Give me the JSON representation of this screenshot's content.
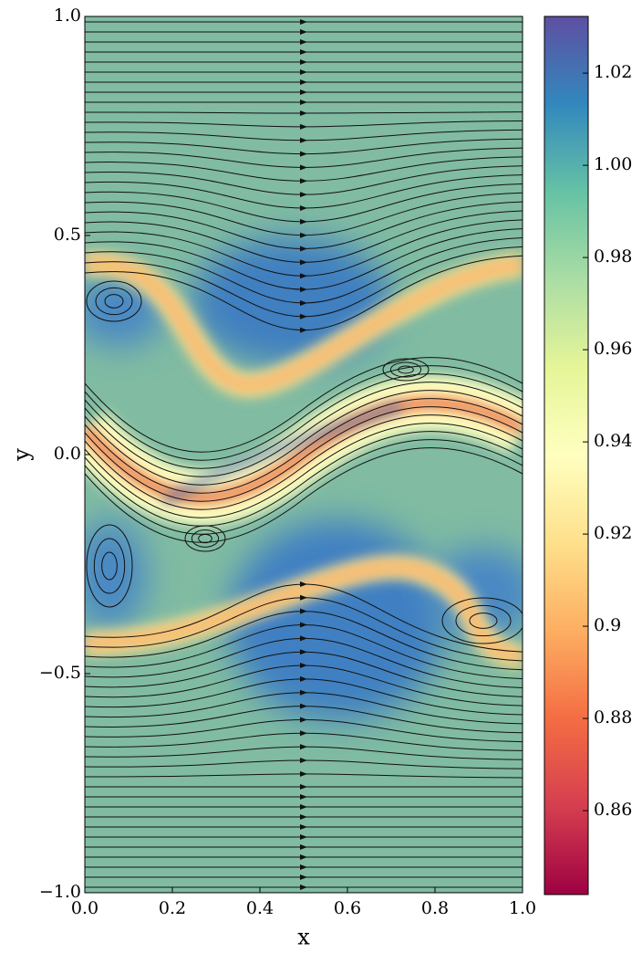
{
  "chart_data": {
    "type": "heatmap",
    "xlabel": "x",
    "ylabel": "y",
    "xlim": [
      0,
      1
    ],
    "ylim": [
      -1,
      1
    ],
    "xticks": [
      {
        "value": 0,
        "label": "0.0"
      },
      0.2,
      0.4,
      0.6,
      0.8,
      {
        "value": 1,
        "label": "1.0"
      }
    ],
    "yticks": [
      {
        "value": -1,
        "label": "−1.0"
      },
      {
        "value": -0.5,
        "label": "−0.5"
      },
      {
        "value": 0,
        "label": "0.0"
      },
      0.5,
      {
        "value": 1,
        "label": "1.0"
      }
    ],
    "colorbar_lim": [
      0.8418,
      1.0323
    ],
    "colorbar_ticks": [
      0.86,
      0.88,
      0.9,
      0.92,
      0.94,
      0.96,
      0.98,
      {
        "value": 1,
        "label": "1.00"
      },
      1.02
    ],
    "colormap": [
      "#9e0142",
      "#d53e4f",
      "#f46d43",
      "#fdae61",
      "#fee08b",
      "#ffffbf",
      "#e6f598",
      "#abdda4",
      "#66c2a5",
      "#3288bd",
      "#5e4fa2"
    ]
  }
}
